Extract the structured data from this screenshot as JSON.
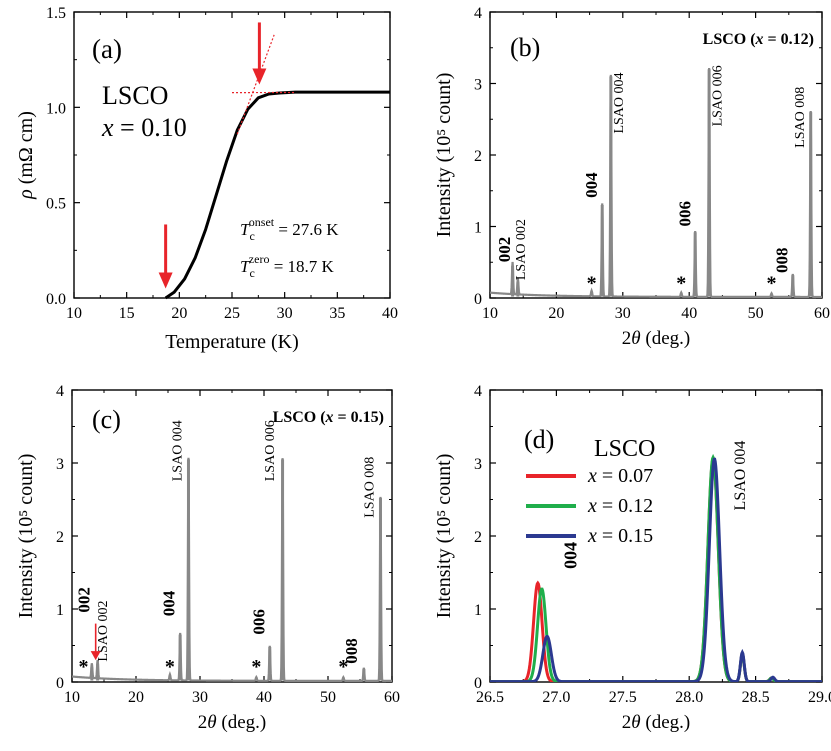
{
  "colors": {
    "axis": "#000000",
    "gray": "#888888",
    "red": "#e8242a",
    "green": "#1fae4b",
    "blue": "#2b3990",
    "star": "#2b3990"
  },
  "chart_data": [
    {
      "id": "a",
      "panel_label": "(a)",
      "type": "line",
      "title": "",
      "xlabel": "Temperature (K)",
      "ylabel_symbol": "ρ",
      "ylabel_unit": " (mΩ cm)",
      "xlim": [
        10,
        40
      ],
      "ylim": [
        0,
        1.5
      ],
      "xticks": [
        "10",
        "15",
        "20",
        "25",
        "30",
        "35",
        "40"
      ],
      "yticks": [
        "0.0",
        "0.5",
        "1.0",
        "1.5"
      ],
      "sample": "LSCO",
      "composition": "x = 0.10",
      "tc_onset_label": "T",
      "tc_onset_sub": "c",
      "tc_onset_sup": "onset",
      "tc_onset_value": " = 27.6 K",
      "tc_zero_label": "T",
      "tc_zero_sub": "c",
      "tc_zero_sup": "zero",
      "tc_zero_value": " = 18.7 K",
      "tc_onset_K": 27.6,
      "tc_zero_K": 18.7,
      "series": [
        {
          "name": "rho",
          "x": [
            18.7,
            19.5,
            20.5,
            21.5,
            22.5,
            23.5,
            24.5,
            25.5,
            26.5,
            27.5,
            28.5,
            29.5,
            31,
            33,
            35,
            37,
            40
          ],
          "y": [
            0.0,
            0.03,
            0.1,
            0.21,
            0.36,
            0.54,
            0.72,
            0.88,
            0.99,
            1.05,
            1.07,
            1.075,
            1.08,
            1.08,
            1.08,
            1.08,
            1.08
          ]
        }
      ],
      "tangent_lines": [
        {
          "x": [
            25.5,
            29.0
          ],
          "y": [
            0.86,
            1.38
          ]
        },
        {
          "x": [
            25.0,
            31.0
          ],
          "y": [
            1.077,
            1.078
          ]
        }
      ]
    },
    {
      "id": "b",
      "panel_label": "(b)",
      "type": "line",
      "title": "LSCO (x = 0.12)",
      "xlabel": "2θ (deg.)",
      "ylabel": "Intensity (10⁵ count)",
      "xlim": [
        10,
        60
      ],
      "ylim": [
        0,
        4
      ],
      "xticks": [
        "10",
        "20",
        "30",
        "40",
        "50",
        "60"
      ],
      "yticks": [
        "0",
        "1",
        "2",
        "3",
        "4"
      ],
      "peaks": [
        {
          "x": 13.4,
          "y": 0.45
        },
        {
          "x": 14.2,
          "y": 0.22
        },
        {
          "x": 26.9,
          "y": 1.3
        },
        {
          "x": 28.2,
          "y": 3.1
        },
        {
          "x": 40.9,
          "y": 0.92
        },
        {
          "x": 43.0,
          "y": 3.2
        },
        {
          "x": 55.6,
          "y": 0.32
        },
        {
          "x": 58.3,
          "y": 2.6
        },
        {
          "x": 25.3,
          "y": 0.08
        },
        {
          "x": 38.8,
          "y": 0.06
        },
        {
          "x": 52.4,
          "y": 0.05
        }
      ],
      "film_peak_labels": [
        {
          "text": "002",
          "x": 13.0,
          "y": 0.5
        },
        {
          "text": "004",
          "x": 26.1,
          "y": 1.4
        },
        {
          "text": "006",
          "x": 40.2,
          "y": 1.0
        },
        {
          "text": "008",
          "x": 54.8,
          "y": 0.35
        }
      ],
      "substrate_labels": [
        {
          "text": "LSAO 002",
          "x": 15.3,
          "y": 0.25
        },
        {
          "text": "LSAO 004",
          "x": 30.0,
          "y": 2.3
        },
        {
          "text": "LSAO 006",
          "x": 44.9,
          "y": 2.4
        },
        {
          "text": "LSAO 008",
          "x": 57.3,
          "y": 2.1
        }
      ],
      "impurity_marks": [
        {
          "text": "*",
          "x": 25.3,
          "y": 0.12
        },
        {
          "text": "*",
          "x": 38.8,
          "y": 0.12
        },
        {
          "text": "*",
          "x": 52.4,
          "y": 0.12
        }
      ]
    },
    {
      "id": "c",
      "panel_label": "(c)",
      "type": "line",
      "title": "LSCO (x = 0.15)",
      "xlabel": "2θ (deg.)",
      "ylabel": "Intensity (10⁵ count)",
      "xlim": [
        10,
        60
      ],
      "ylim": [
        0,
        4
      ],
      "xticks": [
        "10",
        "20",
        "30",
        "40",
        "50",
        "60"
      ],
      "yticks": [
        "0",
        "1",
        "2",
        "3",
        "4"
      ],
      "peaks": [
        {
          "x": 13.1,
          "y": 0.2
        },
        {
          "x": 14.0,
          "y": 0.25
        },
        {
          "x": 26.9,
          "y": 0.65
        },
        {
          "x": 28.2,
          "y": 3.05
        },
        {
          "x": 40.9,
          "y": 0.48
        },
        {
          "x": 42.9,
          "y": 3.05
        },
        {
          "x": 55.6,
          "y": 0.18
        },
        {
          "x": 58.2,
          "y": 2.52
        },
        {
          "x": 25.3,
          "y": 0.08
        },
        {
          "x": 38.8,
          "y": 0.05
        },
        {
          "x": 52.4,
          "y": 0.05
        }
      ],
      "film_peak_labels": [
        {
          "text": "002",
          "x": 12.7,
          "y": 0.95
        },
        {
          "text": "004",
          "x": 26.0,
          "y": 0.9
        },
        {
          "text": "006",
          "x": 40.1,
          "y": 0.65
        },
        {
          "text": "008",
          "x": 54.5,
          "y": 0.25
        }
      ],
      "substrate_labels": [
        {
          "text": "LSAO 002",
          "x": 15.5,
          "y": 0.28
        },
        {
          "text": "LSAO 004",
          "x": 27.1,
          "y": 2.75
        },
        {
          "text": "LSAO 006",
          "x": 41.6,
          "y": 2.75
        },
        {
          "text": "LSAO 008",
          "x": 57.1,
          "y": 2.25
        }
      ],
      "impurity_marks": [
        {
          "text": "*",
          "x": 11.8,
          "y": 0.12
        },
        {
          "text": "*",
          "x": 25.3,
          "y": 0.12
        },
        {
          "text": "*",
          "x": 38.8,
          "y": 0.12
        },
        {
          "text": "*",
          "x": 52.4,
          "y": 0.12
        }
      ],
      "arrow": {
        "x": 13.7,
        "y_from": 0.8,
        "y_to": 0.3
      }
    },
    {
      "id": "d",
      "panel_label": "(d)",
      "type": "line",
      "title": "",
      "xlabel": "2θ (deg.)",
      "ylabel": "Intensity (10⁵ count)",
      "xlim": [
        26.5,
        29.0
      ],
      "ylim": [
        0,
        4
      ],
      "xticks": [
        "26.5",
        "27.0",
        "27.5",
        "28.0",
        "28.5",
        "29.0"
      ],
      "yticks": [
        "0",
        "1",
        "2",
        "3",
        "4"
      ],
      "legend_title": "LSCO",
      "peak_label": "004",
      "substrate_label": "LSAO 004",
      "series": [
        {
          "name": "x = 0.07",
          "color_key": "red",
          "peaks": [
            [
              26.86,
              1.35,
              0.045
            ],
            [
              28.18,
              3.05,
              0.055
            ],
            [
              28.4,
              0.38,
              0.02
            ],
            [
              28.62,
              0.05,
              0.02
            ]
          ]
        },
        {
          "name": "x = 0.12",
          "color_key": "green",
          "peaks": [
            [
              26.89,
              1.27,
              0.045
            ],
            [
              28.18,
              3.07,
              0.055
            ],
            [
              28.4,
              0.38,
              0.02
            ],
            [
              28.62,
              0.05,
              0.02
            ]
          ]
        },
        {
          "name": "x = 0.15",
          "color_key": "blue",
          "peaks": [
            [
              26.93,
              0.62,
              0.045
            ],
            [
              28.19,
              3.05,
              0.055
            ],
            [
              28.4,
              0.4,
              0.02
            ],
            [
              28.63,
              0.06,
              0.02
            ]
          ]
        }
      ]
    }
  ]
}
